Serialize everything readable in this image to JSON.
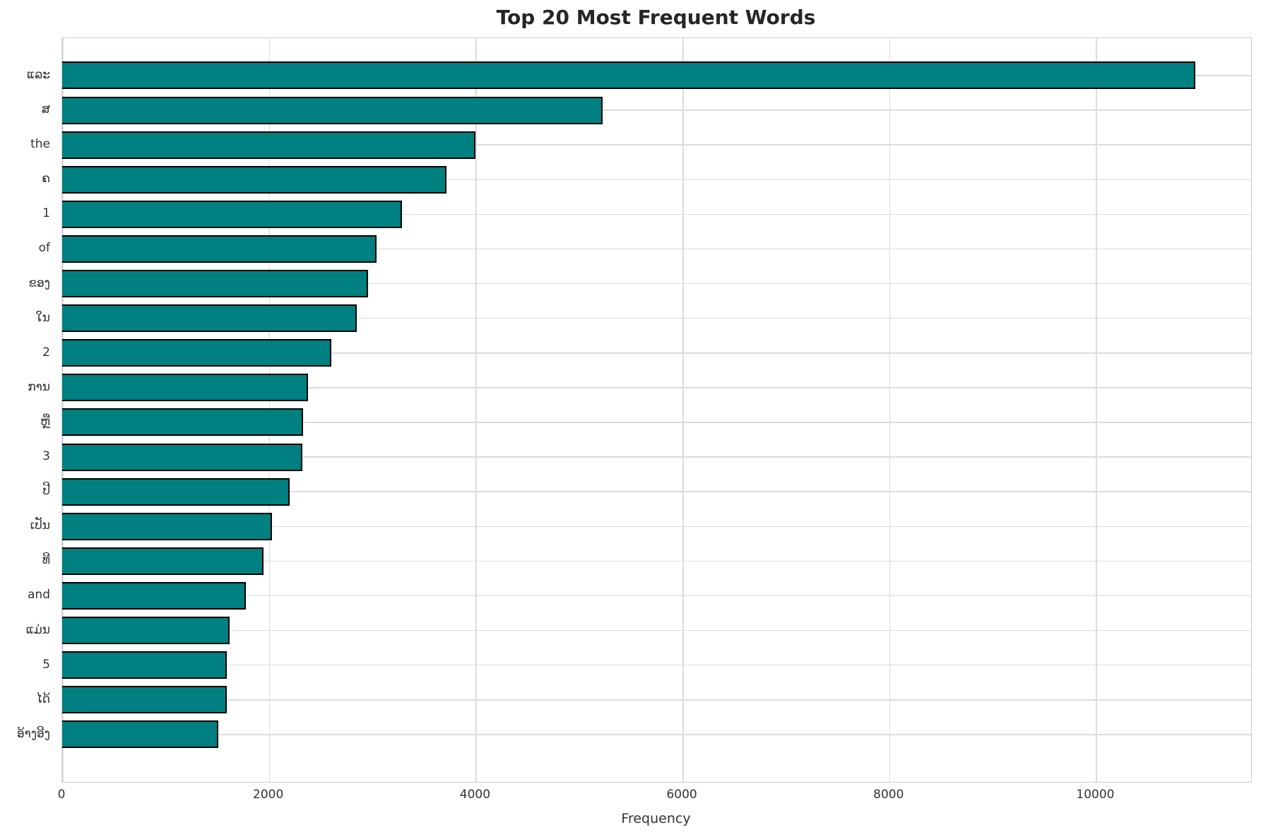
{
  "chart_data": {
    "type": "bar",
    "orientation": "horizontal",
    "title": "Top 20 Most Frequent Words",
    "xlabel": "Frequency",
    "ylabel": "",
    "categories": [
      "ແລະ",
      "ສ",
      "the",
      "ຄ",
      "1",
      "of",
      "ຂອງ",
      "ໃນ",
      "2",
      "ການ",
      "ຫຼື",
      "3",
      "ປີ",
      "ເປັນ",
      "ທີ",
      "and",
      "ແມ່ນ",
      "5",
      "ໄດ້",
      "ອ້າງອີງ"
    ],
    "values": [
      10960,
      5230,
      4000,
      3720,
      3290,
      3040,
      2960,
      2850,
      2600,
      2380,
      2330,
      2320,
      2200,
      2030,
      1950,
      1780,
      1620,
      1590,
      1590,
      1510
    ],
    "xticks": [
      0,
      2000,
      4000,
      6000,
      8000,
      10000
    ],
    "xlim": [
      0,
      11500
    ],
    "grid": true,
    "legend": null,
    "bar_color": "#008080",
    "bar_edge_color": "#000000",
    "grid_color": "#dcdcdc",
    "background_color": "#ffffff",
    "title_color": "#262626",
    "tick_color": "#333333"
  }
}
